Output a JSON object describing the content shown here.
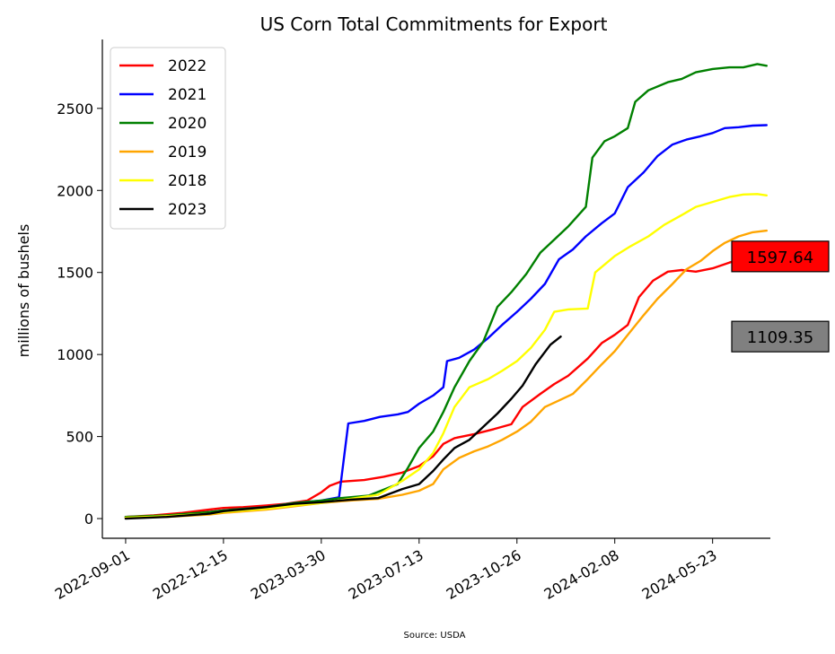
{
  "chart_data": {
    "type": "line",
    "title": "US Corn Total Commitments for Export",
    "xlabel": "",
    "ylabel": "millions of bushels",
    "source": "Source: USDA",
    "x_axis": {
      "type": "date",
      "range": [
        "2022-08-07",
        "2024-07-24"
      ],
      "ticks": [
        "2022-09-01",
        "2022-12-15",
        "2023-03-30",
        "2023-07-13",
        "2023-10-26",
        "2024-02-08",
        "2024-05-23"
      ]
    },
    "ylim": [
      -120,
      2920
    ],
    "yticks": [
      0,
      500,
      1000,
      1500,
      2000,
      2500
    ],
    "grid": false,
    "legend_position": "top-left",
    "series": [
      {
        "name": "2022",
        "color": "#ff0000",
        "points": [
          [
            "2022-09-01",
            10
          ],
          [
            "2022-10-01",
            20
          ],
          [
            "2022-11-01",
            35
          ],
          [
            "2022-11-30",
            55
          ],
          [
            "2022-12-15",
            65
          ],
          [
            "2023-01-05",
            70
          ],
          [
            "2023-01-30",
            80
          ],
          [
            "2023-02-20",
            90
          ],
          [
            "2023-03-15",
            110
          ],
          [
            "2023-03-30",
            160
          ],
          [
            "2023-04-08",
            200
          ],
          [
            "2023-04-20",
            225
          ],
          [
            "2023-05-15",
            235
          ],
          [
            "2023-06-05",
            255
          ],
          [
            "2023-06-25",
            280
          ],
          [
            "2023-07-13",
            320
          ],
          [
            "2023-07-28",
            380
          ],
          [
            "2023-08-08",
            455
          ],
          [
            "2023-08-20",
            490
          ],
          [
            "2023-09-10",
            515
          ],
          [
            "2023-10-01",
            545
          ],
          [
            "2023-10-20",
            575
          ],
          [
            "2023-11-01",
            680
          ],
          [
            "2023-11-20",
            760
          ],
          [
            "2023-12-05",
            820
          ],
          [
            "2023-12-20",
            870
          ],
          [
            "2024-01-10",
            975
          ],
          [
            "2024-01-25",
            1070
          ],
          [
            "2024-02-08",
            1120
          ],
          [
            "2024-02-22",
            1180
          ],
          [
            "2024-03-05",
            1350
          ],
          [
            "2024-03-20",
            1450
          ],
          [
            "2024-04-05",
            1505
          ],
          [
            "2024-04-20",
            1515
          ],
          [
            "2024-05-05",
            1505
          ],
          [
            "2024-05-23",
            1525
          ],
          [
            "2024-06-10",
            1560
          ],
          [
            "2024-06-25",
            1585
          ],
          [
            "2024-07-10",
            1598
          ],
          [
            "2024-07-20",
            1598
          ]
        ]
      },
      {
        "name": "2021",
        "color": "#0000ff",
        "points": [
          [
            "2022-09-01",
            10
          ],
          [
            "2022-10-15",
            15
          ],
          [
            "2022-11-30",
            40
          ],
          [
            "2022-12-15",
            50
          ],
          [
            "2023-01-30",
            70
          ],
          [
            "2023-03-01",
            95
          ],
          [
            "2023-03-30",
            110
          ],
          [
            "2023-04-18",
            130
          ],
          [
            "2023-04-28",
            580
          ],
          [
            "2023-05-15",
            595
          ],
          [
            "2023-06-01",
            620
          ],
          [
            "2023-06-20",
            635
          ],
          [
            "2023-07-01",
            650
          ],
          [
            "2023-07-13",
            700
          ],
          [
            "2023-07-28",
            750
          ],
          [
            "2023-08-08",
            800
          ],
          [
            "2023-08-12",
            960
          ],
          [
            "2023-08-25",
            980
          ],
          [
            "2023-09-10",
            1030
          ],
          [
            "2023-09-25",
            1100
          ],
          [
            "2023-10-10",
            1180
          ],
          [
            "2023-10-26",
            1260
          ],
          [
            "2023-11-10",
            1340
          ],
          [
            "2023-11-25",
            1430
          ],
          [
            "2023-12-10",
            1580
          ],
          [
            "2023-12-25",
            1640
          ],
          [
            "2024-01-08",
            1720
          ],
          [
            "2024-01-25",
            1800
          ],
          [
            "2024-02-08",
            1860
          ],
          [
            "2024-02-22",
            2020
          ],
          [
            "2024-03-10",
            2110
          ],
          [
            "2024-03-25",
            2210
          ],
          [
            "2024-04-10",
            2280
          ],
          [
            "2024-04-25",
            2310
          ],
          [
            "2024-05-10",
            2330
          ],
          [
            "2024-05-23",
            2350
          ],
          [
            "2024-06-05",
            2380
          ],
          [
            "2024-06-20",
            2385
          ],
          [
            "2024-07-05",
            2395
          ],
          [
            "2024-07-20",
            2398
          ]
        ]
      },
      {
        "name": "2020",
        "color": "#008000",
        "points": [
          [
            "2022-09-01",
            10
          ],
          [
            "2022-10-15",
            20
          ],
          [
            "2022-11-30",
            40
          ],
          [
            "2022-12-15",
            50
          ],
          [
            "2023-01-30",
            70
          ],
          [
            "2023-03-01",
            95
          ],
          [
            "2023-03-30",
            110
          ],
          [
            "2023-04-20",
            125
          ],
          [
            "2023-05-20",
            140
          ],
          [
            "2023-06-20",
            210
          ],
          [
            "2023-07-01",
            310
          ],
          [
            "2023-07-13",
            430
          ],
          [
            "2023-07-28",
            530
          ],
          [
            "2023-08-08",
            650
          ],
          [
            "2023-08-20",
            800
          ],
          [
            "2023-09-05",
            960
          ],
          [
            "2023-09-20",
            1080
          ],
          [
            "2023-10-05",
            1290
          ],
          [
            "2023-10-20",
            1380
          ],
          [
            "2023-11-05",
            1490
          ],
          [
            "2023-11-20",
            1620
          ],
          [
            "2023-12-05",
            1700
          ],
          [
            "2023-12-20",
            1780
          ],
          [
            "2024-01-08",
            1900
          ],
          [
            "2024-01-15",
            2200
          ],
          [
            "2024-01-28",
            2300
          ],
          [
            "2024-02-08",
            2330
          ],
          [
            "2024-02-22",
            2380
          ],
          [
            "2024-03-01",
            2540
          ],
          [
            "2024-03-15",
            2610
          ],
          [
            "2024-04-05",
            2660
          ],
          [
            "2024-04-20",
            2680
          ],
          [
            "2024-05-05",
            2720
          ],
          [
            "2024-05-23",
            2740
          ],
          [
            "2024-06-10",
            2750
          ],
          [
            "2024-06-25",
            2750
          ],
          [
            "2024-07-10",
            2770
          ],
          [
            "2024-07-20",
            2760
          ]
        ]
      },
      {
        "name": "2019",
        "color": "#ffa500",
        "points": [
          [
            "2022-09-01",
            5
          ],
          [
            "2022-10-15",
            10
          ],
          [
            "2022-11-30",
            25
          ],
          [
            "2022-12-15",
            35
          ],
          [
            "2023-01-30",
            55
          ],
          [
            "2023-03-01",
            75
          ],
          [
            "2023-03-30",
            95
          ],
          [
            "2023-04-30",
            110
          ],
          [
            "2023-05-30",
            120
          ],
          [
            "2023-06-25",
            145
          ],
          [
            "2023-07-13",
            170
          ],
          [
            "2023-07-28",
            210
          ],
          [
            "2023-08-08",
            300
          ],
          [
            "2023-08-25",
            370
          ],
          [
            "2023-09-10",
            410
          ],
          [
            "2023-09-25",
            440
          ],
          [
            "2023-10-10",
            480
          ],
          [
            "2023-10-26",
            530
          ],
          [
            "2023-11-10",
            590
          ],
          [
            "2023-11-25",
            680
          ],
          [
            "2023-12-10",
            720
          ],
          [
            "2023-12-25",
            760
          ],
          [
            "2024-01-10",
            850
          ],
          [
            "2024-01-25",
            940
          ],
          [
            "2024-02-08",
            1020
          ],
          [
            "2024-02-22",
            1120
          ],
          [
            "2024-03-10",
            1240
          ],
          [
            "2024-03-25",
            1340
          ],
          [
            "2024-04-10",
            1430
          ],
          [
            "2024-04-25",
            1520
          ],
          [
            "2024-05-10",
            1570
          ],
          [
            "2024-05-23",
            1630
          ],
          [
            "2024-06-05",
            1680
          ],
          [
            "2024-06-20",
            1720
          ],
          [
            "2024-07-05",
            1745
          ],
          [
            "2024-07-20",
            1755
          ]
        ]
      },
      {
        "name": "2018",
        "color": "#ffff00",
        "points": [
          [
            "2022-09-01",
            5
          ],
          [
            "2022-10-15",
            15
          ],
          [
            "2022-11-30",
            30
          ],
          [
            "2022-12-15",
            40
          ],
          [
            "2023-01-30",
            60
          ],
          [
            "2023-03-01",
            80
          ],
          [
            "2023-03-30",
            95
          ],
          [
            "2023-04-30",
            120
          ],
          [
            "2023-05-30",
            145
          ],
          [
            "2023-06-25",
            230
          ],
          [
            "2023-07-13",
            300
          ],
          [
            "2023-07-28",
            400
          ],
          [
            "2023-08-08",
            520
          ],
          [
            "2023-08-20",
            680
          ],
          [
            "2023-09-05",
            800
          ],
          [
            "2023-09-25",
            850
          ],
          [
            "2023-10-10",
            900
          ],
          [
            "2023-10-26",
            960
          ],
          [
            "2023-11-10",
            1040
          ],
          [
            "2023-11-25",
            1150
          ],
          [
            "2023-12-05",
            1260
          ],
          [
            "2023-12-20",
            1275
          ],
          [
            "2024-01-10",
            1280
          ],
          [
            "2024-01-18",
            1500
          ],
          [
            "2024-02-08",
            1600
          ],
          [
            "2024-02-25",
            1660
          ],
          [
            "2024-03-15",
            1720
          ],
          [
            "2024-04-01",
            1790
          ],
          [
            "2024-04-20",
            1850
          ],
          [
            "2024-05-05",
            1900
          ],
          [
            "2024-05-23",
            1930
          ],
          [
            "2024-06-10",
            1960
          ],
          [
            "2024-06-25",
            1975
          ],
          [
            "2024-07-10",
            1978
          ],
          [
            "2024-07-20",
            1970
          ]
        ]
      },
      {
        "name": "2023",
        "color": "#000000",
        "points": [
          [
            "2022-09-01",
            0
          ],
          [
            "2022-10-15",
            10
          ],
          [
            "2022-11-30",
            30
          ],
          [
            "2022-12-15",
            45
          ],
          [
            "2023-01-30",
            70
          ],
          [
            "2023-03-01",
            90
          ],
          [
            "2023-03-30",
            100
          ],
          [
            "2023-04-30",
            115
          ],
          [
            "2023-05-30",
            125
          ],
          [
            "2023-06-25",
            180
          ],
          [
            "2023-07-13",
            210
          ],
          [
            "2023-07-28",
            290
          ],
          [
            "2023-08-08",
            360
          ],
          [
            "2023-08-20",
            430
          ],
          [
            "2023-09-05",
            480
          ],
          [
            "2023-09-20",
            560
          ],
          [
            "2023-10-05",
            640
          ],
          [
            "2023-10-20",
            730
          ],
          [
            "2023-11-01",
            810
          ],
          [
            "2023-11-15",
            940
          ],
          [
            "2023-12-01",
            1060
          ],
          [
            "2023-12-12",
            1109
          ]
        ]
      }
    ],
    "annotations": [
      {
        "text": "1597.64",
        "value": 1597.64,
        "background": "#ff0000"
      },
      {
        "text": "1109.35",
        "value": 1109.35,
        "background": "#808080"
      }
    ]
  }
}
